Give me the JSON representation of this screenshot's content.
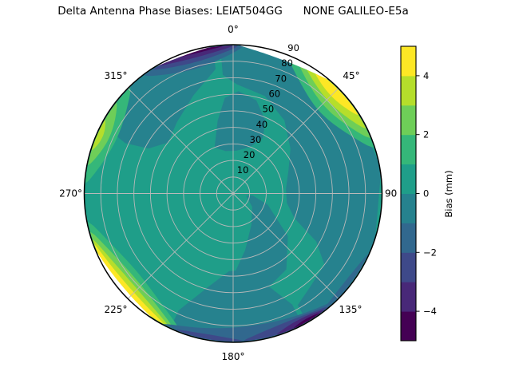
{
  "page": {
    "background": "#ffffff"
  },
  "chart_data": {
    "type": "polar_contour",
    "title": "Delta Antenna Phase Biases: LEIAT504GG      NONE GALILEO-E5a",
    "theta_zero_location": "N",
    "theta_direction": "clockwise",
    "theta_labels": [
      "0°",
      "45°",
      "90",
      "135°",
      "180°",
      "225°",
      "270°",
      "315°"
    ],
    "r_tick_labels": [
      "10",
      "20",
      "30",
      "40",
      "50",
      "60",
      "70",
      "80",
      "90"
    ],
    "r_max": 90,
    "r_label_angle_deg": 22.5,
    "grid_on": true,
    "grid_color": "#b9b9b9",
    "colormap_name": "viridis",
    "levels": [
      -5,
      -4,
      -3,
      -2,
      -1,
      0,
      1,
      2,
      3,
      4,
      5
    ],
    "colors": [
      "#440154",
      "#482878",
      "#3e4989",
      "#31688e",
      "#26828e",
      "#1f9e89",
      "#35b779",
      "#6ece58",
      "#b5de2b",
      "#fde725"
    ],
    "colorbar": {
      "label": "Bias (mm)",
      "tick_labels": [
        "4",
        "2",
        "0",
        "−2",
        "−4"
      ],
      "tick_values": [
        4,
        2,
        0,
        -2,
        -4
      ],
      "vmin": -5,
      "vmax": 5,
      "position": "right"
    },
    "features": [
      {
        "region": "center / most of sky",
        "bias_mm": "−1 to +1 (teal/green)"
      },
      {
        "region": "north horizon (az ≈ 325°–0°)",
        "bias_mm": "−5 to −2 (purple/blue crescent)"
      },
      {
        "region": "northeast horizon (az ≈ 30°–60°)",
        "bias_mm": "+2 to +5 (yellow/green wedge)"
      },
      {
        "region": "west horizon (az ≈ 275°–315°)",
        "bias_mm": "+1 to +3 (green streak)"
      },
      {
        "region": "southwest horizon (az ≈ 205°–255°)",
        "bias_mm": "+2 to +5 (yellow band)"
      },
      {
        "region": "south horizon (az ≈ 115°–205°)",
        "bias_mm": "−5 to −1 (blue/purple band)"
      }
    ]
  }
}
